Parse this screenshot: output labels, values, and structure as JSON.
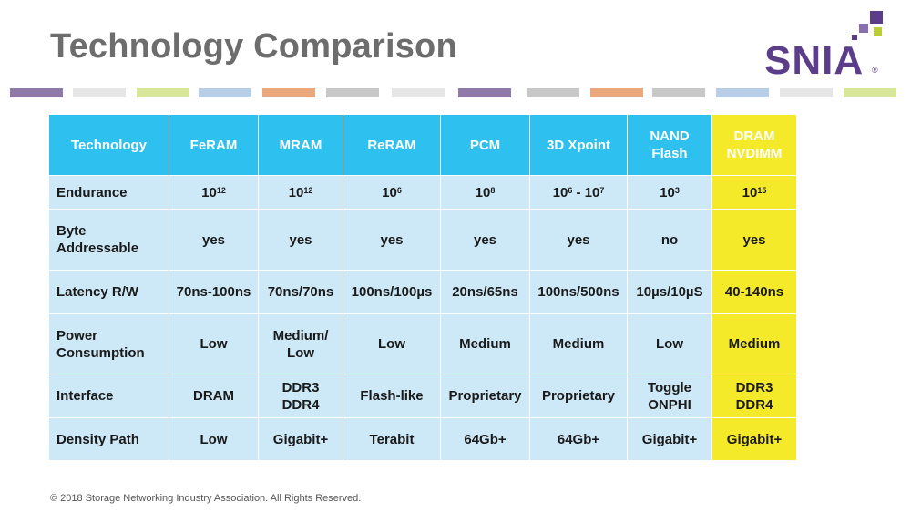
{
  "title": "Technology Comparison",
  "logo": {
    "text": "SNIA",
    "registered": "®",
    "colors": [
      "#5b3d8a",
      "#bccc3a"
    ]
  },
  "stripe_colors": [
    "#8e79a8",
    "#e6e6e6",
    "#d8e69a",
    "#b8cde6",
    "#eba87d",
    "#c8c8c8",
    "#e6e6e6",
    "#8e79a8",
    "#c8c8c8",
    "#eba87d",
    "#c8c8c8",
    "#b8cde6",
    "#e6e6e6",
    "#d8e69a"
  ],
  "table": {
    "headers": [
      {
        "label": "Technology"
      },
      {
        "label": "FeRAM"
      },
      {
        "label": "MRAM"
      },
      {
        "label": "ReRAM"
      },
      {
        "label": "PCM"
      },
      {
        "label": "3D Xpoint"
      },
      {
        "label1": "NAND",
        "label2": "Flash"
      },
      {
        "label1": "DRAM",
        "label2": "NVDIMM"
      }
    ],
    "rows": [
      {
        "label": "Endurance",
        "cells": [
          {
            "base": "10",
            "exp": "12"
          },
          {
            "base": "10",
            "exp": "12"
          },
          {
            "base": "10",
            "exp": "6"
          },
          {
            "base": "10",
            "exp": "8"
          },
          {
            "base": "10",
            "exp": "6",
            "sep": " - ",
            "base2": "10",
            "exp2": "7"
          },
          {
            "base": "10",
            "exp": "3"
          },
          {
            "base": "10",
            "exp": "15"
          }
        ]
      },
      {
        "label1": "Byte",
        "label2": "Addressable",
        "cells": [
          {
            "t": "yes"
          },
          {
            "t": "yes"
          },
          {
            "t": "yes"
          },
          {
            "t": "yes"
          },
          {
            "t": "yes"
          },
          {
            "t": "no"
          },
          {
            "t": "yes"
          }
        ]
      },
      {
        "label": "Latency R/W",
        "cells": [
          {
            "t": "70ns-100ns"
          },
          {
            "t": "70ns/70ns"
          },
          {
            "t": "100ns/100µs"
          },
          {
            "t": "20ns/65ns"
          },
          {
            "t": "100ns/500ns"
          },
          {
            "t": "10µs/10µS"
          },
          {
            "t": "40-140ns"
          }
        ]
      },
      {
        "label1": "Power",
        "label2": "Consumption",
        "cells": [
          {
            "t": "Low"
          },
          {
            "t1": "Medium/",
            "t2": "Low"
          },
          {
            "t": "Low"
          },
          {
            "t": "Medium"
          },
          {
            "t": "Medium"
          },
          {
            "t": "Low"
          },
          {
            "t": "Medium"
          }
        ]
      },
      {
        "label": "Interface",
        "cells": [
          {
            "t": "DRAM"
          },
          {
            "t1": "DDR3",
            "t2": "DDR4"
          },
          {
            "t": "Flash-like"
          },
          {
            "t": "Proprietary"
          },
          {
            "t": "Proprietary"
          },
          {
            "t1": "Toggle",
            "t2": "ONPHI"
          },
          {
            "t1": "DDR3",
            "t2": "DDR4"
          }
        ]
      },
      {
        "label": "Density Path",
        "cells": [
          {
            "t": "Low"
          },
          {
            "t": "Gigabit+"
          },
          {
            "t": "Terabit"
          },
          {
            "t": "64Gb+"
          },
          {
            "t": "64Gb+"
          },
          {
            "t": "Gigabit+"
          },
          {
            "t": "Gigabit+"
          }
        ]
      }
    ]
  },
  "footer": "© 2018 Storage Networking Industry Association. All Rights Reserved."
}
